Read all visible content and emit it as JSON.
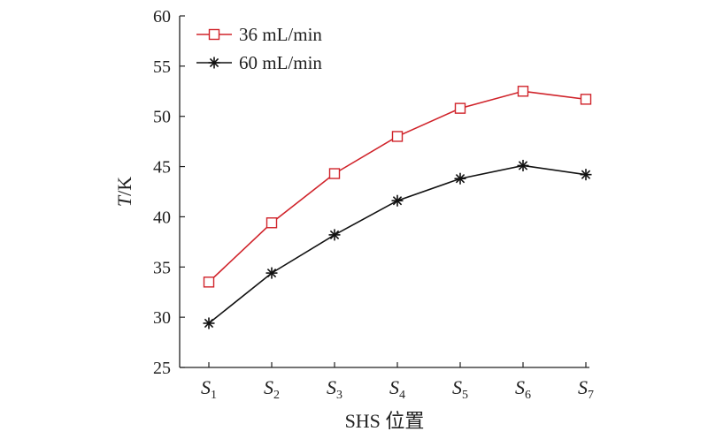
{
  "chart_data": {
    "type": "line",
    "xlabel": "SHS 位置",
    "ylabel": {
      "italic": "T",
      "rest": "/K"
    },
    "categories": [
      {
        "main": "S",
        "sub": "1"
      },
      {
        "main": "S",
        "sub": "2"
      },
      {
        "main": "S",
        "sub": "3"
      },
      {
        "main": "S",
        "sub": "4"
      },
      {
        "main": "S",
        "sub": "5"
      },
      {
        "main": "S",
        "sub": "6"
      },
      {
        "main": "S",
        "sub": "7"
      }
    ],
    "ylim": [
      25,
      60
    ],
    "yticks": [
      25,
      30,
      35,
      40,
      45,
      50,
      55,
      60
    ],
    "grid": false,
    "legend_position": "top-left",
    "series": [
      {
        "name": "36 mL/min",
        "color": "#d0232a",
        "marker": "open-square",
        "values": [
          33.5,
          39.4,
          44.3,
          48.0,
          50.8,
          52.5,
          51.7
        ]
      },
      {
        "name": "60 mL/min",
        "color": "#111111",
        "marker": "asterisk",
        "values": [
          29.4,
          34.4,
          38.2,
          41.6,
          43.8,
          45.1,
          44.2
        ]
      }
    ]
  }
}
